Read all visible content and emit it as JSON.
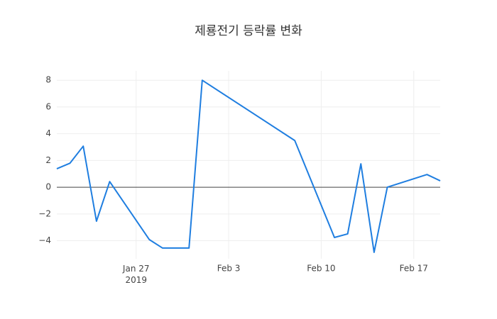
{
  "chart_data": {
    "type": "line",
    "title": "제룡전기 등락률 변화",
    "x": [
      "2019-01-21",
      "2019-01-22",
      "2019-01-23",
      "2019-01-24",
      "2019-01-25",
      "2019-01-28",
      "2019-01-29",
      "2019-01-31",
      "2019-02-01",
      "2019-02-08",
      "2019-02-11",
      "2019-02-12",
      "2019-02-13",
      "2019-02-14",
      "2019-02-15",
      "2019-02-18",
      "2019-02-19"
    ],
    "series": [
      {
        "name": "등락률",
        "color": "#1f7ee0",
        "values": [
          1.38,
          1.8,
          3.07,
          -2.54,
          0.42,
          -3.92,
          -4.55,
          -4.55,
          8.0,
          3.49,
          -3.76,
          -3.49,
          1.75,
          -4.87,
          0.0,
          0.95,
          0.48
        ]
      }
    ],
    "xlim": [
      "2019-01-21",
      "2019-02-19"
    ],
    "xticks": [
      {
        "value": "2019-01-27",
        "label": "Jan 27\n2019"
      },
      {
        "value": "2019-02-03",
        "label": "Feb 3"
      },
      {
        "value": "2019-02-10",
        "label": "Feb 10"
      },
      {
        "value": "2019-02-17",
        "label": "Feb 17"
      }
    ],
    "ylim": [
      -5.35,
      8.7
    ],
    "yticks": [
      {
        "value": -4,
        "label": "−4"
      },
      {
        "value": -2,
        "label": "−2"
      },
      0,
      2,
      4,
      6,
      8
    ],
    "grid": true
  }
}
